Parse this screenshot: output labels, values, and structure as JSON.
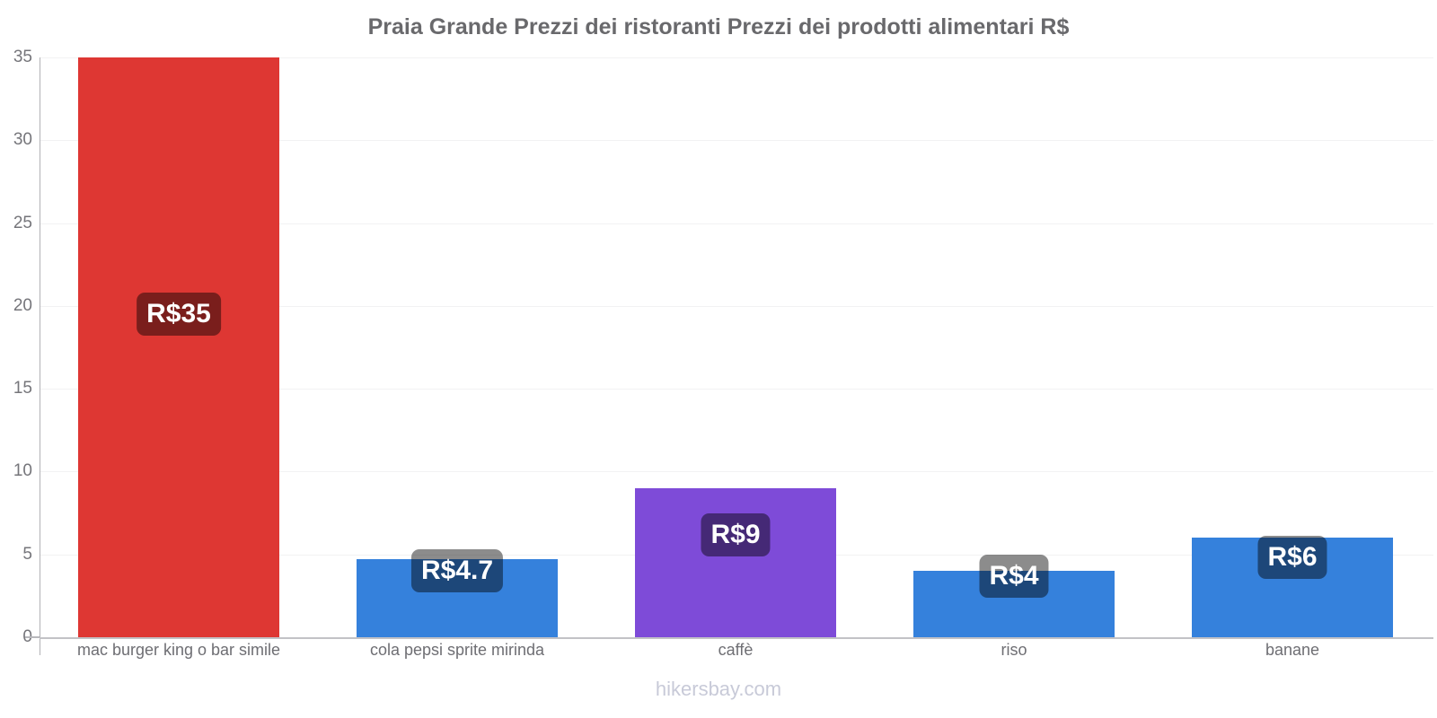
{
  "page": {
    "footer_link": "hikersbay.com"
  },
  "chart_data": {
    "type": "bar",
    "title": "Praia Grande Prezzi dei ristoranti Prezzi dei prodotti alimentari R$",
    "currency": "R$",
    "categories": [
      "mac burger king o bar simile",
      "cola pepsi sprite mirinda",
      "caffè",
      "riso",
      "banane"
    ],
    "values": [
      35,
      4.7,
      9,
      4,
      6
    ],
    "value_labels": [
      "R$35",
      "R$4.7",
      "R$9",
      "R$4",
      "R$6"
    ],
    "bar_colors": [
      "#de3733",
      "#3581dc",
      "#7e4bd8",
      "#3581dc",
      "#3581dc"
    ],
    "label_y_positions": [
      19.5,
      4.0,
      6.2,
      3.7,
      4.8
    ],
    "xlabel": "",
    "ylabel": "",
    "ylim": [
      0,
      35
    ],
    "yticks": [
      0,
      5,
      10,
      15,
      20,
      25,
      30,
      35
    ],
    "grid": true,
    "legend": "none"
  },
  "colors": {
    "red_bar": "#de3733",
    "blue_bar": "#3581dc",
    "purple_bar": "#7e4bd8",
    "title_text": "#69696c",
    "axis_text": "#75757a",
    "category_text": "#6e6e73",
    "footer_text": "#c8cad8",
    "pill_background": "rgba(0,0,0,0.45)",
    "pill_text": "#ffffff",
    "gridline": "#f2f2f3",
    "axis_line": "#b2b2b6",
    "baseline": "#c2c2c6"
  }
}
